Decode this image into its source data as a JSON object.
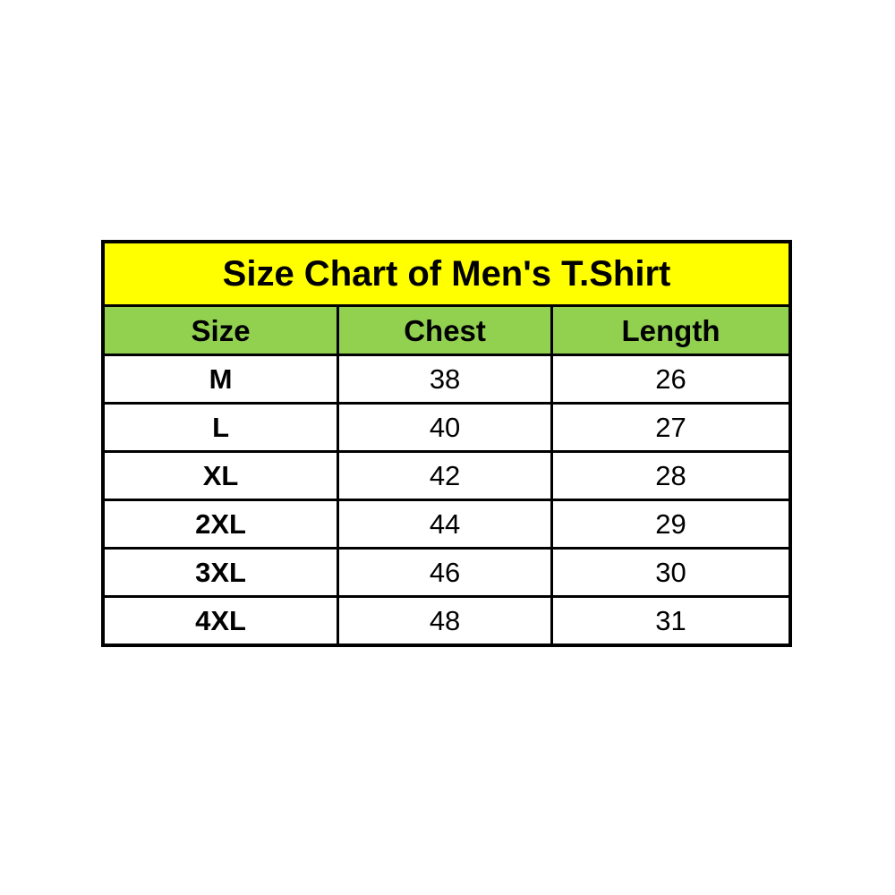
{
  "chart_data": {
    "type": "table",
    "title": "Size Chart of Men's T.Shirt",
    "columns": [
      "Size",
      "Chest",
      "Length"
    ],
    "rows": [
      [
        "M",
        38,
        26
      ],
      [
        "L",
        40,
        27
      ],
      [
        "XL",
        42,
        28
      ],
      [
        "2XL",
        44,
        29
      ],
      [
        "3XL",
        46,
        30
      ],
      [
        "4XL",
        48,
        31
      ]
    ],
    "layout": {
      "title_bg": "#FFFF00",
      "header_bg": "#92D050",
      "row_bg": "#FFFFFF",
      "border_color": "#000000",
      "text_color": "#000000"
    }
  }
}
